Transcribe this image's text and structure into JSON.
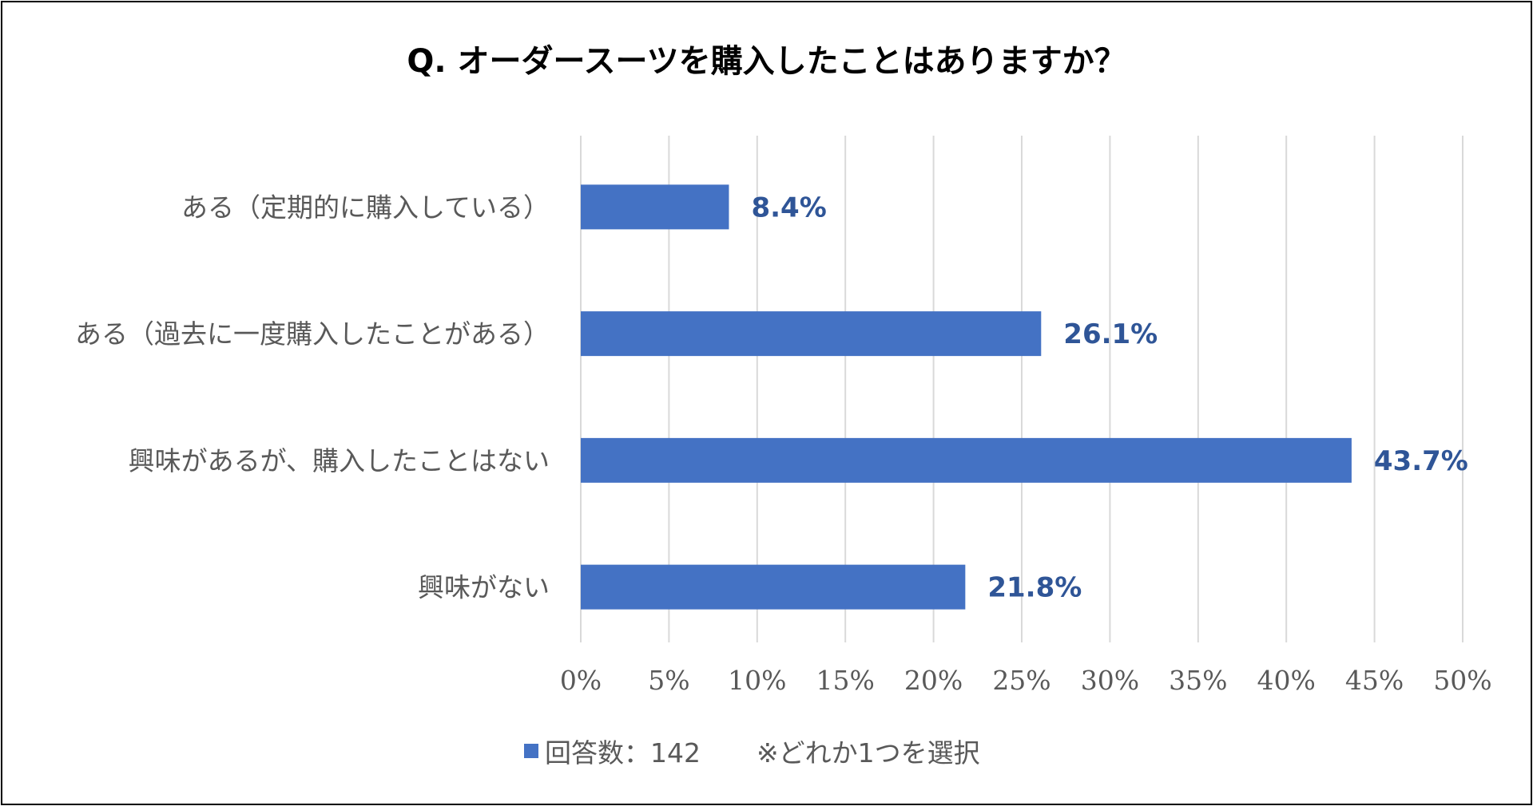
{
  "colors": {
    "bar": "#4472C4",
    "value_label": "#2F5597",
    "grid": "#D9D9D9",
    "text": "#595959"
  },
  "chart_data": {
    "type": "bar",
    "orientation": "horizontal",
    "title": "Q. オーダースーツを購入したことはありますか？",
    "categories": [
      "ある（定期的に購入している）",
      "ある（過去に一度購入したことがある）",
      "興味があるが、購入したことはない",
      "興味がない"
    ],
    "series": [
      {
        "name": "回答数：142",
        "values": [
          8.4,
          26.1,
          43.7,
          21.8
        ]
      }
    ],
    "value_labels": [
      "8.4%",
      "26.1%",
      "43.7%",
      "21.8%"
    ],
    "xlim": [
      0,
      50
    ],
    "xticks": [
      0,
      5,
      10,
      15,
      20,
      25,
      30,
      35,
      40,
      45,
      50
    ],
    "xtick_labels": [
      "0%",
      "5%",
      "10%",
      "15%",
      "20%",
      "25%",
      "30%",
      "35%",
      "40%",
      "45%",
      "50%"
    ],
    "grid": true,
    "legend_position": "bottom",
    "legend": {
      "series_label": "回答数：142",
      "note": "※どれか1つを選択"
    }
  }
}
